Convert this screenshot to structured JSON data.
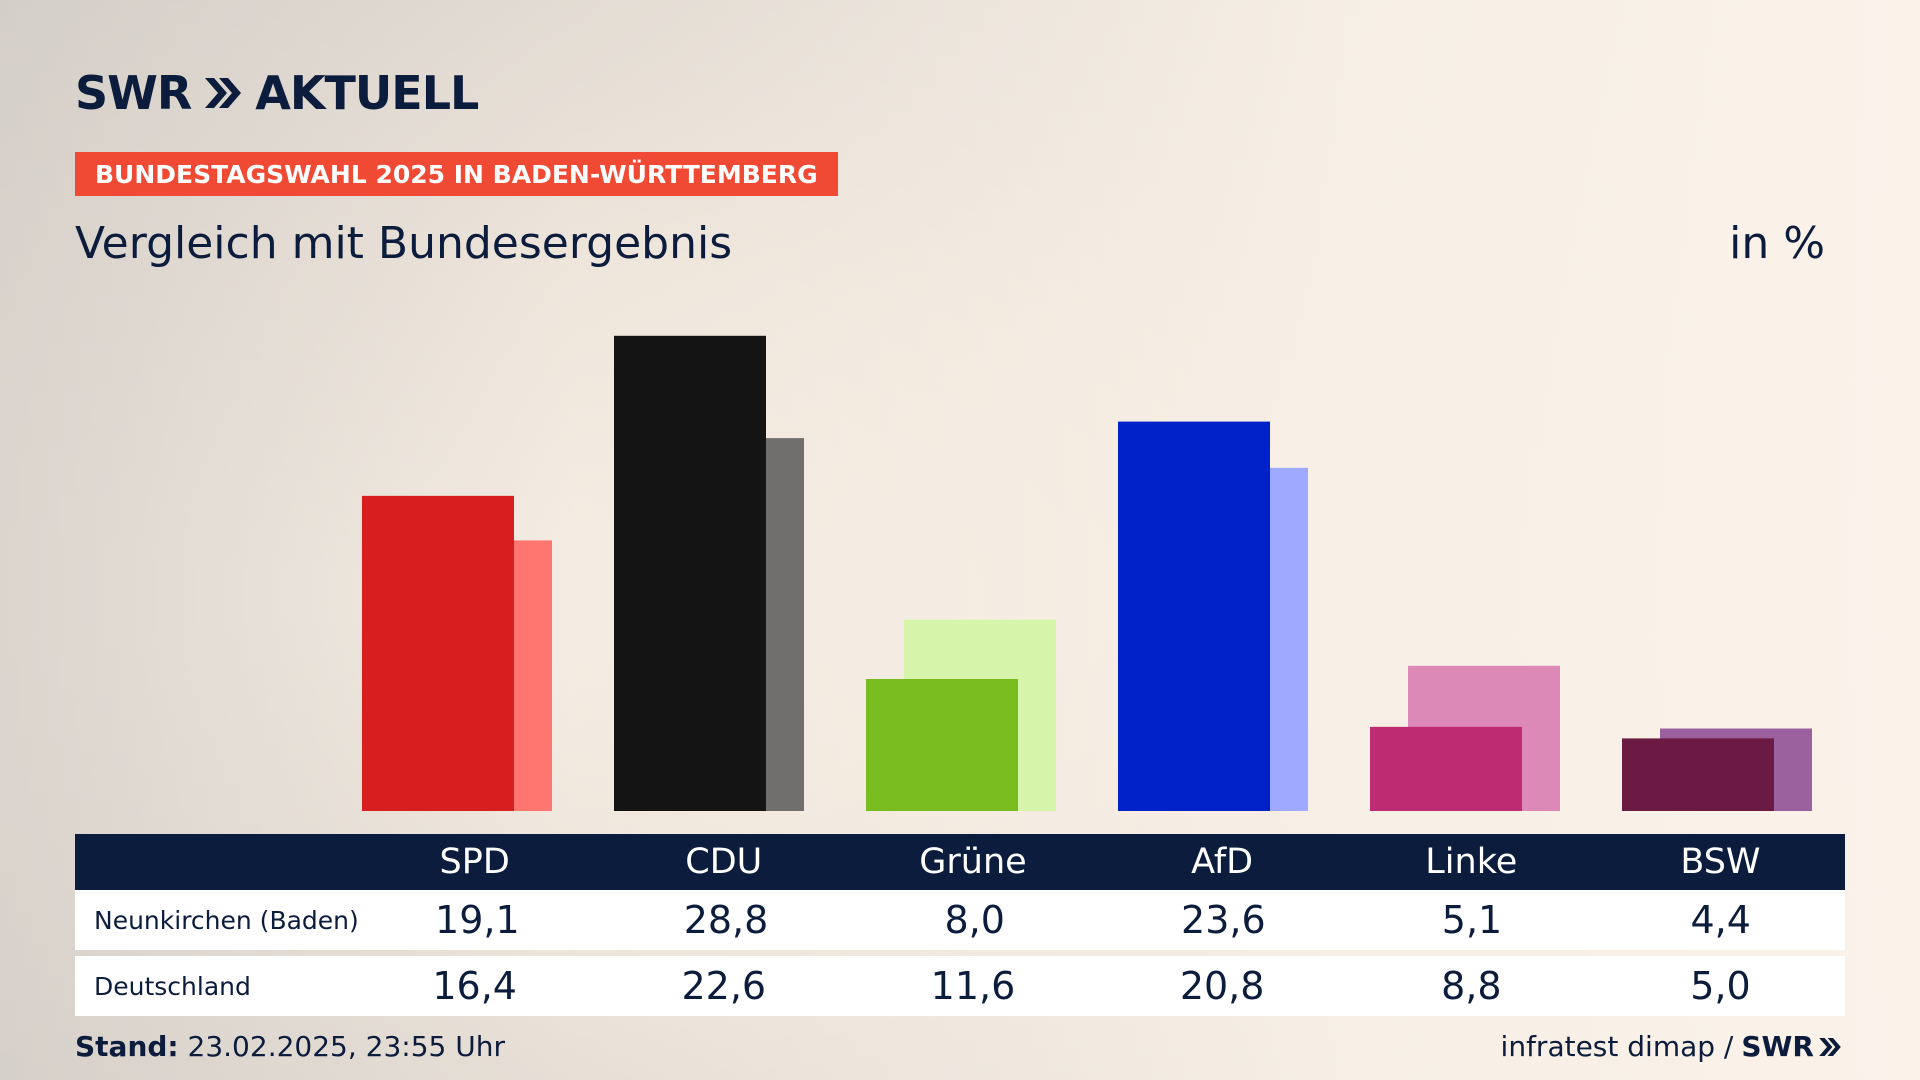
{
  "brand": {
    "logo_text_left": "SWR",
    "logo_text_right": "AKTUELL",
    "navy": "#0c1c3c",
    "red": "#f04a35"
  },
  "banner": "BUNDESTAGSWAHL 2025 IN BADEN-WÜRTTEMBERG",
  "subtitle": "Vergleich mit Bundesergebnis",
  "unit": "in %",
  "chart_data": {
    "type": "bar",
    "categories": [
      "SPD",
      "CDU",
      "Grüne",
      "AfD",
      "Linke",
      "BSW"
    ],
    "series": [
      {
        "name": "Neunkirchen (Baden)",
        "values": [
          19.1,
          28.8,
          8.0,
          23.6,
          5.1,
          4.4
        ]
      },
      {
        "name": "Deutschland",
        "values": [
          16.4,
          22.6,
          11.6,
          20.8,
          8.8,
          5.0
        ]
      }
    ],
    "colors_primary": [
      "#d71f1f",
      "#141414",
      "#79bc1f",
      "#0020c8",
      "#bd2c72",
      "#6b1a43"
    ],
    "colors_secondary": [
      "#ff7670",
      "#706f6d",
      "#d6f5ab",
      "#9eaaff",
      "#dd89b7",
      "#9b619f"
    ],
    "ylim": [
      0,
      30
    ],
    "title": "Vergleich mit Bundesergebnis",
    "grid": false
  },
  "table": {
    "header": [
      "SPD",
      "CDU",
      "Grüne",
      "AfD",
      "Linke",
      "BSW"
    ],
    "rows": [
      {
        "label": "Neunkirchen (Baden)",
        "values": [
          "19,1",
          "28,8",
          "8,0",
          "23,6",
          "5,1",
          "4,4"
        ]
      },
      {
        "label": "Deutschland",
        "values": [
          "16,4",
          "22,6",
          "11,6",
          "20,8",
          "8,8",
          "5,0"
        ]
      }
    ]
  },
  "footer": {
    "stand_label": "Stand:",
    "stand_value": "23.02.2025, 23:55 Uhr",
    "source": "infratest dimap /",
    "source_brand": "SWR"
  }
}
